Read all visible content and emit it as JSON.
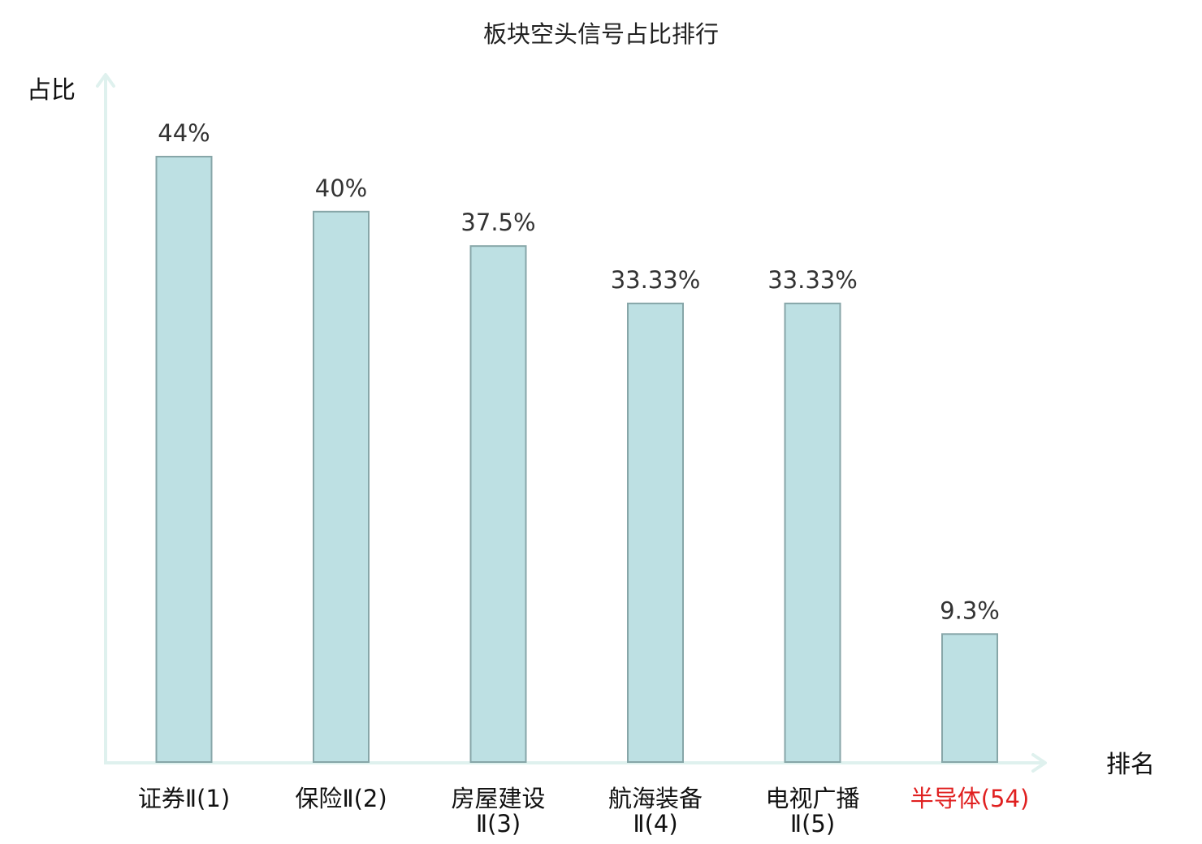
{
  "chart_data": {
    "type": "bar",
    "title": "板块空头信号占比排行",
    "ylabel": "占比",
    "xlabel": "排名",
    "ylim": [
      0,
      50
    ],
    "grid": false,
    "categories": [
      {
        "line1": "证券Ⅱ(1)",
        "line2": "",
        "highlight": false
      },
      {
        "line1": "保险Ⅱ(2)",
        "line2": "",
        "highlight": false
      },
      {
        "line1": "房屋建设",
        "line2": "Ⅱ(3)",
        "highlight": false
      },
      {
        "line1": "航海装备",
        "line2": "Ⅱ(4)",
        "highlight": false
      },
      {
        "line1": "电视广播",
        "line2": "Ⅱ(5)",
        "highlight": false
      },
      {
        "line1": "半导体(54)",
        "line2": "",
        "highlight": true
      }
    ],
    "values": [
      44,
      40,
      37.5,
      33.33,
      33.33,
      9.3
    ],
    "value_labels": [
      "44%",
      "40%",
      "37.5%",
      "33.33%",
      "33.33%",
      "9.3%"
    ],
    "colors": {
      "bar_fill": "#bde0e3",
      "bar_stroke": "#87a6a8",
      "axis": "#dff1ee",
      "highlight": "#e02020",
      "text": "#111111"
    }
  }
}
